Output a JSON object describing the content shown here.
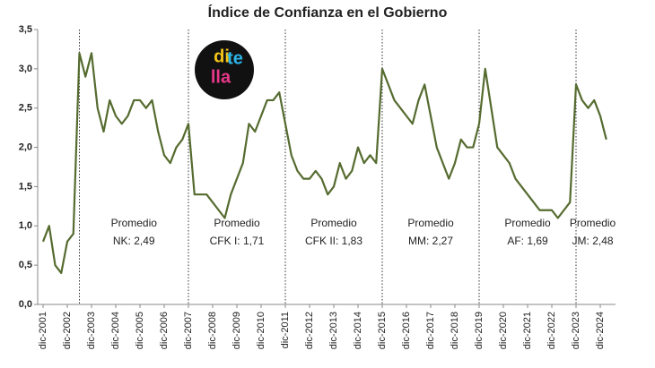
{
  "chart_data": {
    "type": "line",
    "title": "Índice de Confianza en el Gobierno",
    "categories": [
      "dic-2001",
      null,
      null,
      null,
      "dic-2002",
      null,
      null,
      null,
      "dic-2003",
      null,
      null,
      null,
      "dic-2004",
      null,
      null,
      null,
      "dic-2005",
      null,
      null,
      null,
      "dic-2006",
      null,
      null,
      null,
      "dic-2007",
      null,
      null,
      null,
      "dic-2008",
      null,
      null,
      null,
      "dic-2009",
      null,
      null,
      null,
      "dic-2010",
      null,
      null,
      null,
      "dic-2011",
      null,
      null,
      null,
      "dic-2012",
      null,
      null,
      null,
      "dic-2013",
      null,
      null,
      null,
      "dic-2014",
      null,
      null,
      null,
      "dic-2015",
      null,
      null,
      null,
      "dic-2016",
      null,
      null,
      null,
      "dic-2017",
      null,
      null,
      null,
      "dic-2018",
      null,
      null,
      null,
      "dic-2019",
      null,
      null,
      null,
      "dic-2020",
      null,
      null,
      null,
      "dic-2021",
      null,
      null,
      null,
      "dic-2022",
      null,
      null,
      null,
      "dic-2023",
      null,
      null,
      null,
      "dic-2024",
      null
    ],
    "series": [
      {
        "name": "Índice",
        "color": "#556b2f",
        "values": [
          0.8,
          1.0,
          0.5,
          0.4,
          0.8,
          0.9,
          3.2,
          2.9,
          3.2,
          2.5,
          2.2,
          2.6,
          2.4,
          2.3,
          2.4,
          2.6,
          2.6,
          2.5,
          2.6,
          2.2,
          1.9,
          1.8,
          2.0,
          2.1,
          2.3,
          1.4,
          1.4,
          1.4,
          1.3,
          1.2,
          1.1,
          1.4,
          1.6,
          1.8,
          2.3,
          2.2,
          2.4,
          2.6,
          2.6,
          2.7,
          2.3,
          1.9,
          1.7,
          1.6,
          1.6,
          1.7,
          1.6,
          1.4,
          1.5,
          1.8,
          1.6,
          1.7,
          2.0,
          1.8,
          1.9,
          1.8,
          3.0,
          2.8,
          2.6,
          2.5,
          2.4,
          2.3,
          2.6,
          2.8,
          2.4,
          2.0,
          1.8,
          1.6,
          1.8,
          2.1,
          2.0,
          2.0,
          2.3,
          3.0,
          2.5,
          2.0,
          1.9,
          1.8,
          1.6,
          1.5,
          1.4,
          1.3,
          1.2,
          1.2,
          1.2,
          1.1,
          1.2,
          1.3,
          2.8,
          2.6,
          2.5,
          2.6,
          2.4,
          2.1
        ]
      }
    ],
    "ylim": [
      0,
      3.5
    ],
    "yticks": [
      {
        "value": 0,
        "label": "0,0"
      },
      {
        "value": 0.5,
        "label": "0,5"
      },
      {
        "value": 1,
        "label": "1,0"
      },
      {
        "value": 1.5,
        "label": "1,5"
      },
      {
        "value": 2,
        "label": "2,0"
      },
      {
        "value": 2.5,
        "label": "2,5"
      },
      {
        "value": 3,
        "label": "3,0"
      },
      {
        "value": 3.5,
        "label": "3,5"
      }
    ],
    "annotations": [
      [
        "Promedio",
        "NK: 2,49"
      ],
      [
        "Promedio",
        "CFK I: 1,71"
      ],
      [
        "Promedio",
        "CFK II: 1,83"
      ],
      [
        "Promedio",
        "MM: 2,27"
      ],
      [
        "Promedio",
        "AF: 1,69"
      ],
      [
        "Promedio",
        "JM: 2,48"
      ]
    ],
    "logo": [
      "di",
      "te",
      "lla"
    ]
  }
}
